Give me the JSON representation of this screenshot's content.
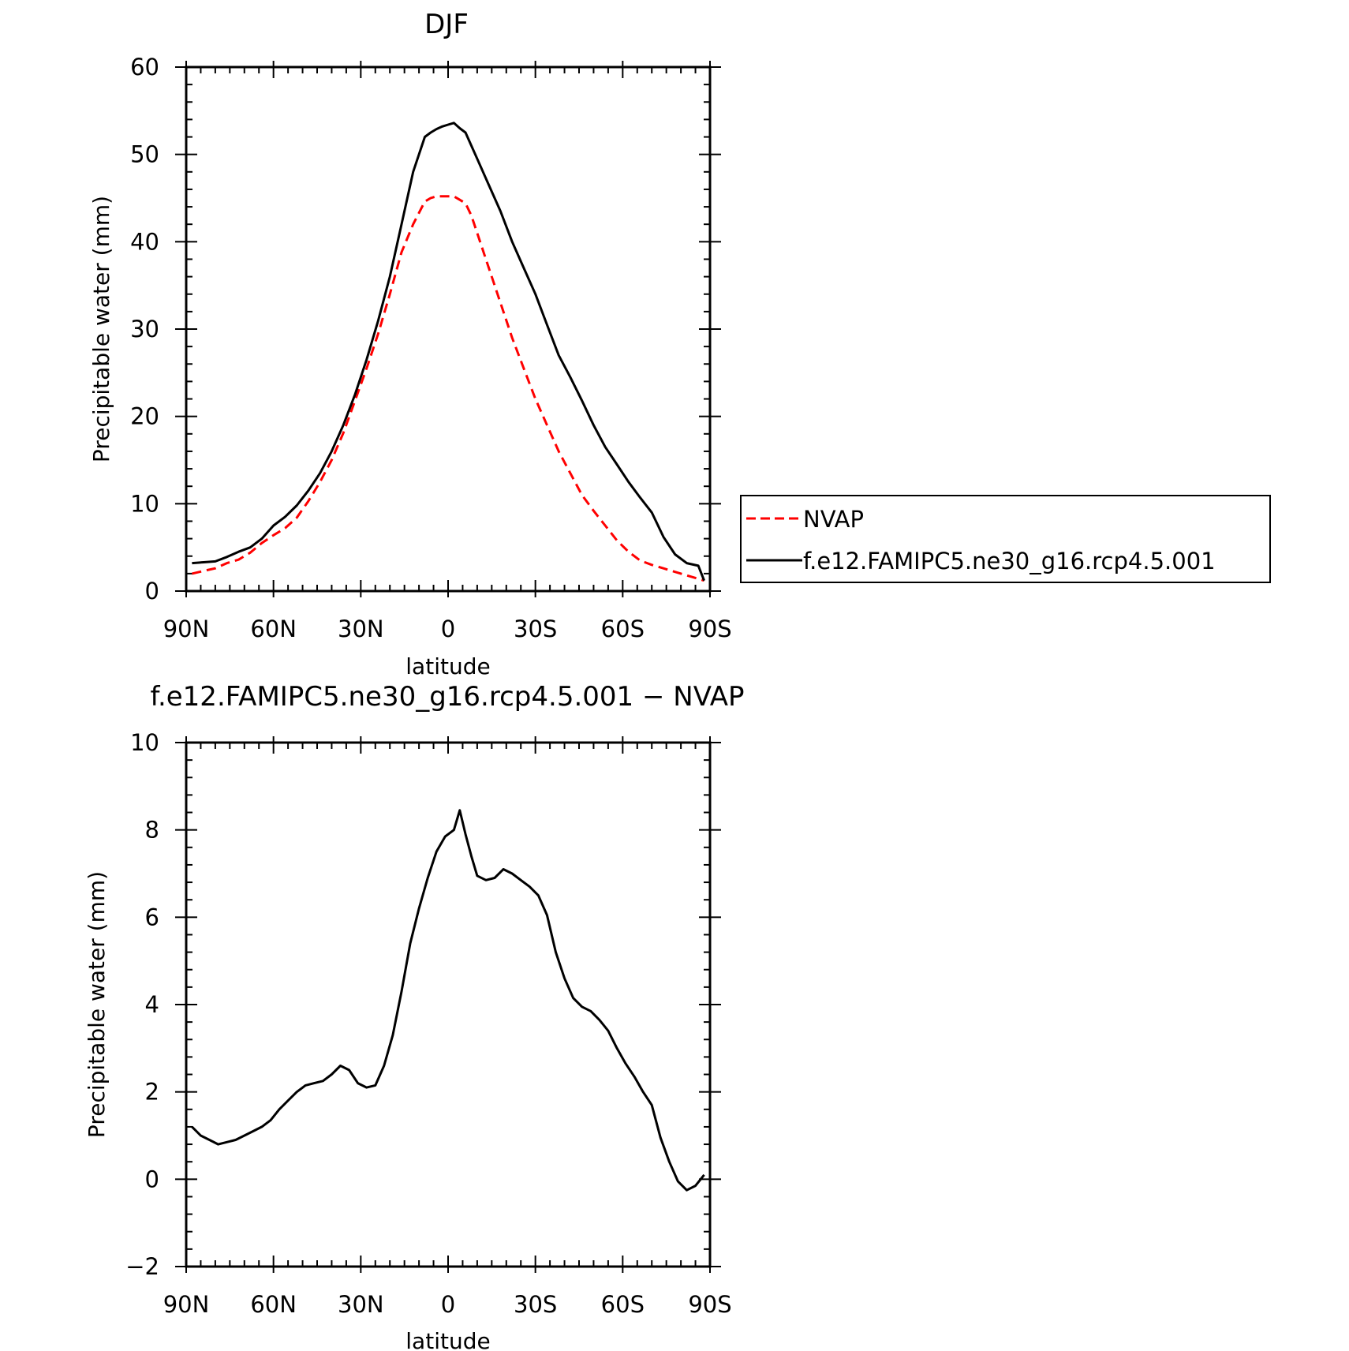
{
  "chart_data": [
    {
      "type": "line",
      "title": "DJF",
      "xlabel": "latitude",
      "ylabel": "Precipitable water (mm)",
      "xlim": [
        90,
        -90
      ],
      "ylim": [
        0,
        60
      ],
      "yticks": [
        0,
        10,
        20,
        30,
        40,
        50,
        60
      ],
      "xticks": [
        90,
        60,
        30,
        0,
        -30,
        -60,
        -90
      ],
      "xtick_labels": [
        "90N",
        "60N",
        "30N",
        "0",
        "30S",
        "60S",
        "90S"
      ],
      "grid": false,
      "legend": "right-outside",
      "x": [
        88,
        84,
        80,
        76,
        72,
        68,
        64,
        60,
        56,
        52,
        48,
        44,
        40,
        36,
        32,
        28,
        24,
        20,
        16,
        12,
        8,
        6,
        4,
        2,
        0,
        -2,
        -4,
        -6,
        -8,
        -10,
        -14,
        -18,
        -22,
        -26,
        -30,
        -34,
        -38,
        -42,
        -46,
        -50,
        -54,
        -58,
        -62,
        -66,
        -70,
        -74,
        -78,
        -82,
        -86,
        -88
      ],
      "series": [
        {
          "name": "NVAP",
          "color": "#ff0000",
          "dash": "dashed",
          "values": [
            2.0,
            2.3,
            2.6,
            3.2,
            3.6,
            4.4,
            5.5,
            6.4,
            7.2,
            8.4,
            10.3,
            12.5,
            15.0,
            18.1,
            21.8,
            25.5,
            29.5,
            34.0,
            38.8,
            42.0,
            44.6,
            45.0,
            45.2,
            45.2,
            45.2,
            45.2,
            44.8,
            44.4,
            43.0,
            41.0,
            37.0,
            33.0,
            29.0,
            25.5,
            22.0,
            19.0,
            16.0,
            13.5,
            11.0,
            9.2,
            7.5,
            5.8,
            4.5,
            3.5,
            3.0,
            2.6,
            2.2,
            1.8,
            1.4,
            1.2
          ],
          "values_note": ""
        },
        {
          "name": "f.e12.FAMIPC5.ne30_g16.rcp4.5.001",
          "color": "#000000",
          "dash": "solid",
          "values": [
            3.2,
            3.3,
            3.4,
            3.9,
            4.5,
            5.0,
            6.0,
            7.5,
            8.5,
            9.8,
            11.5,
            13.5,
            16.0,
            19.0,
            22.5,
            26.5,
            31.0,
            36.0,
            42.0,
            48.0,
            52.0,
            52.5,
            52.9,
            53.2,
            53.4,
            53.6,
            53.0,
            52.5,
            51.0,
            49.5,
            46.5,
            43.5,
            40.0,
            37.0,
            34.0,
            30.5,
            27.0,
            24.5,
            21.8,
            19.0,
            16.5,
            14.5,
            12.5,
            10.7,
            9.0,
            6.2,
            4.2,
            3.2,
            2.9,
            1.2
          ]
        }
      ]
    },
    {
      "type": "line",
      "title": "f.e12.FAMIPC5.ne30_g16.rcp4.5.001 − NVAP",
      "xlabel": "latitude",
      "ylabel": "Precipitable water (mm)",
      "xlim": [
        90,
        -90
      ],
      "ylim": [
        -2,
        10
      ],
      "yticks": [
        -2,
        0,
        2,
        4,
        6,
        8,
        10
      ],
      "ytick_labels": [
        "−2",
        "0",
        "2",
        "4",
        "6",
        "8",
        "10"
      ],
      "xticks": [
        90,
        60,
        30,
        0,
        -30,
        -60,
        -90
      ],
      "xtick_labels": [
        "90N",
        "60N",
        "30N",
        "0",
        "30S",
        "60S",
        "90S"
      ],
      "grid": false,
      "x": [
        88,
        85,
        82,
        79,
        76,
        73,
        70,
        67,
        64,
        61,
        58,
        55,
        52,
        49,
        46,
        43,
        40,
        37,
        34,
        31,
        28,
        25,
        22,
        19,
        16,
        13,
        10,
        7,
        4,
        1,
        -2,
        -4,
        -6,
        -8,
        -10,
        -13,
        -16,
        -19,
        -22,
        -25,
        -28,
        -31,
        -34,
        -37,
        -40,
        -43,
        -46,
        -49,
        -52,
        -55,
        -58,
        -61,
        -64,
        -67,
        -70,
        -73,
        -76,
        -79,
        -82,
        -85,
        -88
      ],
      "series": [
        {
          "name": "",
          "color": "#000000",
          "dash": "solid",
          "values": [
            1.2,
            1.0,
            0.9,
            0.8,
            0.85,
            0.9,
            1.0,
            1.1,
            1.2,
            1.35,
            1.6,
            1.8,
            2.0,
            2.15,
            2.2,
            2.25,
            2.4,
            2.6,
            2.5,
            2.2,
            2.1,
            2.15,
            2.6,
            3.3,
            4.3,
            5.4,
            6.2,
            6.9,
            7.5,
            7.85,
            8.0,
            8.45,
            7.9,
            7.4,
            6.95,
            6.85,
            6.9,
            7.1,
            7.0,
            6.85,
            6.7,
            6.5,
            6.05,
            5.2,
            4.6,
            4.15,
            3.95,
            3.85,
            3.65,
            3.4,
            3.0,
            2.65,
            2.35,
            2.0,
            1.7,
            0.95,
            0.4,
            -0.05,
            -0.25,
            -0.15,
            0.1
          ]
        }
      ]
    }
  ]
}
